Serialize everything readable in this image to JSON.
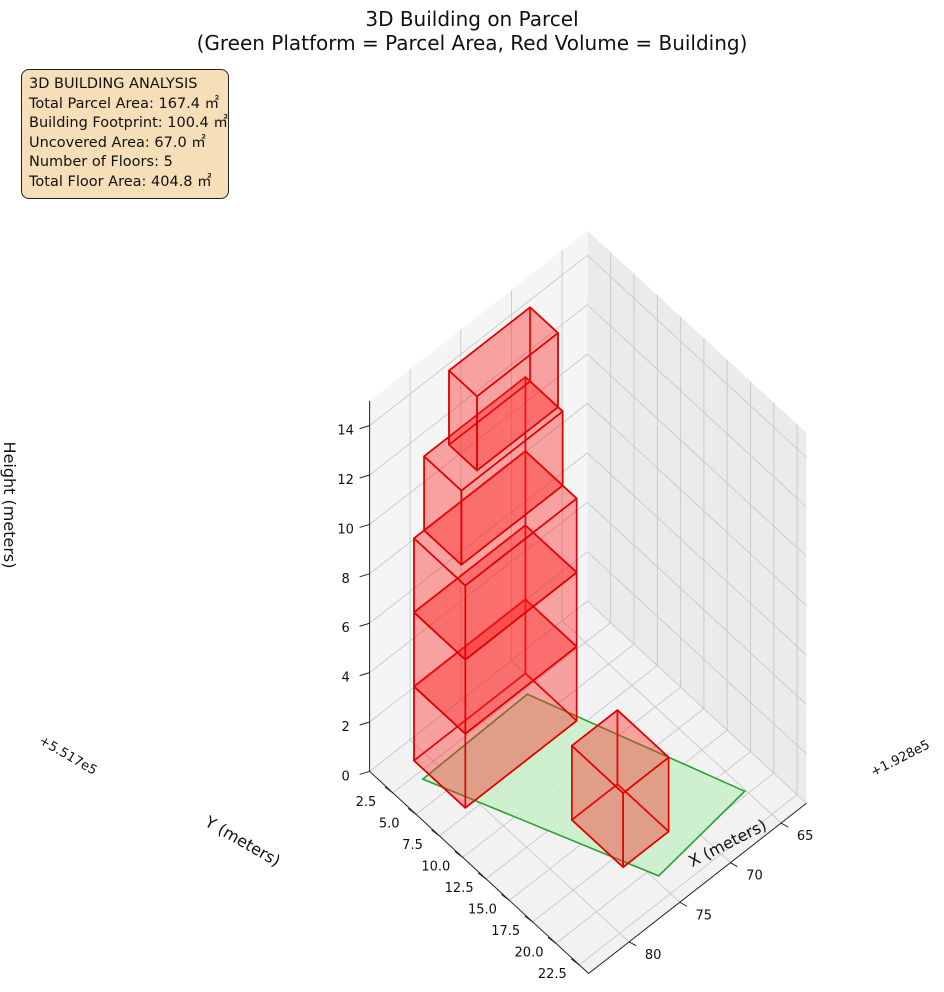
{
  "figure": {
    "title_line1": "3D Building on Parcel",
    "title_line2": "(Green Platform = Parcel Area, Red Volume = Building)"
  },
  "info_box": {
    "lines": [
      "3D BUILDING ANALYSIS",
      "Total Parcel Area: 167.4 ㎡",
      "Building Footprint: 100.4 ㎡",
      "Uncovered Area: 67.0 ㎡",
      "Number of Floors: 5",
      "Total Floor Area: 404.8 ㎡"
    ]
  },
  "colors": {
    "building_fill": "#ff2020",
    "building_edge": "#e00000",
    "parcel_fill": "#c8f0c8",
    "parcel_edge": "#2ca02c",
    "pane": "#f2f2f2",
    "grid": "#c8c8c8"
  },
  "chart_data": {
    "type": "3d-polygons",
    "axes": {
      "x": {
        "label": "X (meters)",
        "offset_label": "+1.928e5",
        "ticks": [
          65,
          70,
          75,
          80
        ]
      },
      "y": {
        "label": "Y (meters)",
        "offset_label": "+5.517e5",
        "ticks": [
          2.5,
          5.0,
          7.5,
          10.0,
          12.5,
          15.0,
          17.5,
          20.0,
          22.5
        ]
      },
      "z": {
        "label": "Height (meters)",
        "ticks": [
          0,
          2,
          4,
          6,
          8,
          10,
          12,
          14
        ]
      }
    },
    "parcel": {
      "name": "Parcel Area",
      "z": 0,
      "polygon": [
        [
          71.1,
          2.9
        ],
        [
          81.6,
          3.1
        ],
        [
          74.6,
          20.8
        ],
        [
          65.1,
          19.7
        ]
      ]
    },
    "building": {
      "name": "Building",
      "floors": 5,
      "floor_height": 3,
      "floor_polygons": [
        [
          [
            70.0,
            7.0
          ],
          [
            70.0,
            1.5
          ],
          [
            81.0,
            1.5
          ],
          [
            81.0,
            7.0
          ]
        ],
        [
          [
            70.0,
            7.0
          ],
          [
            70.0,
            1.5
          ],
          [
            81.0,
            1.5
          ],
          [
            81.0,
            7.0
          ]
        ],
        [
          [
            70.0,
            7.0
          ],
          [
            70.0,
            1.5
          ],
          [
            81.0,
            1.5
          ],
          [
            81.0,
            7.0
          ]
        ],
        [
          [
            70.0,
            5.5
          ],
          [
            70.0,
            1.5
          ],
          [
            80.0,
            1.5
          ],
          [
            80.0,
            5.5
          ]
        ],
        [
          [
            70.0,
            5.0
          ],
          [
            70.0,
            2.0
          ],
          [
            78.0,
            2.0
          ],
          [
            78.0,
            5.0
          ]
        ]
      ],
      "annex": {
        "polygon": [
          [
            71.5,
            13.0
          ],
          [
            76.0,
            13.0
          ],
          [
            76.0,
            18.5
          ],
          [
            71.5,
            18.5
          ]
        ],
        "z_range": [
          0,
          3
        ]
      }
    }
  }
}
